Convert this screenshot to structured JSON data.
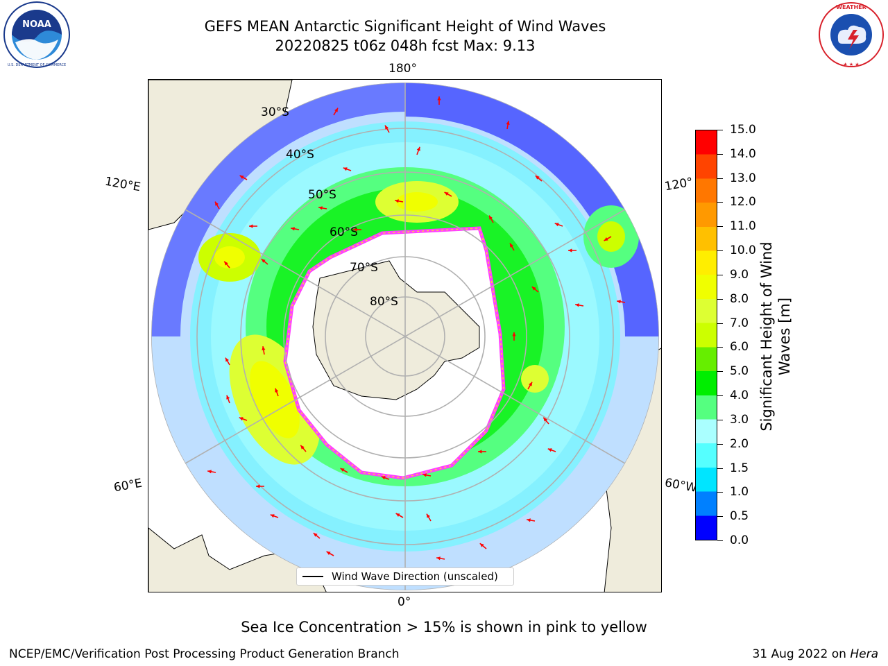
{
  "title": {
    "line1": "GEFS MEAN Antarctic Significant Height of Wind Waves",
    "line2": "20220825 t06z 048h fcst   Max: 9.13"
  },
  "logos": {
    "left": {
      "name": "NOAA",
      "ring_text": "NATIONAL OCEANIC AND ATMOSPHERIC ADMINISTRATION",
      "bottom_text": "U.S. DEPARTMENT OF COMMERCE",
      "colors": [
        "#1a3a8c",
        "#2e8ad8",
        "#ffffff"
      ]
    },
    "right": {
      "name": "NATIONAL WEATHER SERVICE",
      "colors": [
        "#d8202a",
        "#1a4fb0",
        "#ffffff"
      ]
    }
  },
  "map": {
    "projection": "south-polar-stereographic",
    "longitude_labels": [
      "180°",
      "120°E",
      "120°",
      "60°E",
      "60°W",
      "0°"
    ],
    "latitude_labels": [
      "30°S",
      "40°S",
      "50°S",
      "60°S",
      "70°S",
      "80°S"
    ],
    "land_color": "#efecdc",
    "sea_ice_colors": [
      "#ff40ff",
      "#ffd040"
    ],
    "arrow_color": "#ff0000",
    "legend_label": "Wind Wave Direction (unscaled)"
  },
  "colorbar": {
    "title": "Significant Height of Wind Waves [m]",
    "tick_labels": [
      "0.0",
      "0.5",
      "1.0",
      "1.5",
      "2.0",
      "3.0",
      "4.0",
      "5.0",
      "6.0",
      "7.0",
      "8.0",
      "9.0",
      "10.0",
      "11.0",
      "12.0",
      "13.0",
      "14.0",
      "15.0"
    ],
    "bins": [
      {
        "from": "0.0",
        "to": "0.5",
        "color": "#0000ff"
      },
      {
        "from": "0.5",
        "to": "1.0",
        "color": "#0080ff"
      },
      {
        "from": "1.0",
        "to": "1.5",
        "color": "#00e5ff"
      },
      {
        "from": "1.5",
        "to": "2.0",
        "color": "#55ffff"
      },
      {
        "from": "2.0",
        "to": "3.0",
        "color": "#aaffff"
      },
      {
        "from": "3.0",
        "to": "4.0",
        "color": "#55ff80"
      },
      {
        "from": "4.0",
        "to": "5.0",
        "color": "#00ee00"
      },
      {
        "from": "5.0",
        "to": "6.0",
        "color": "#66ee00"
      },
      {
        "from": "6.0",
        "to": "7.0",
        "color": "#ccff00"
      },
      {
        "from": "7.0",
        "to": "8.0",
        "color": "#ddff33"
      },
      {
        "from": "8.0",
        "to": "9.0",
        "color": "#f0ff00"
      },
      {
        "from": "9.0",
        "to": "10.0",
        "color": "#ffee00"
      },
      {
        "from": "10.0",
        "to": "11.0",
        "color": "#ffc000"
      },
      {
        "from": "11.0",
        "to": "12.0",
        "color": "#ff9900"
      },
      {
        "from": "12.0",
        "to": "13.0",
        "color": "#ff7700"
      },
      {
        "from": "13.0",
        "to": "14.0",
        "color": "#ff4400"
      },
      {
        "from": "14.0",
        "to": "15.0",
        "color": "#ff0000"
      }
    ]
  },
  "notes": {
    "sea_ice": "Sea Ice Concentration > 15% is shown in pink to yellow",
    "footer_left": "NCEP/EMC/Verification Post Processing Product Generation Branch",
    "footer_right_prefix": "31 Aug 2022 on ",
    "footer_right_machine": "Hera"
  }
}
